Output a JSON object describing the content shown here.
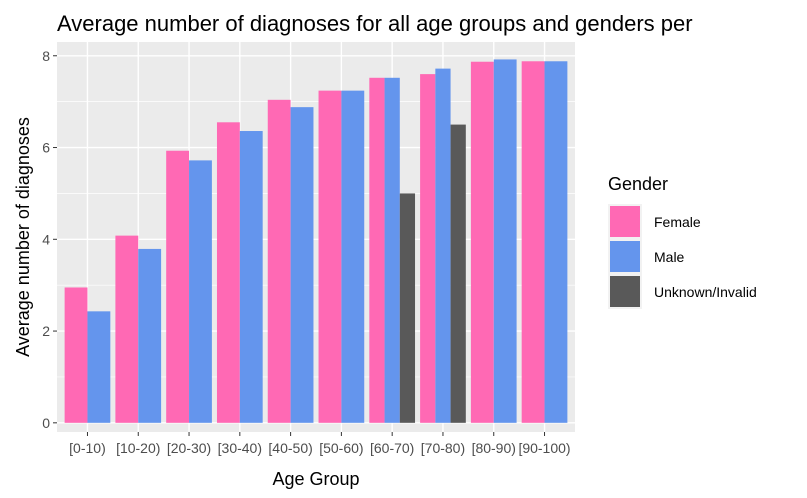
{
  "chart_data": {
    "type": "bar",
    "title": "Average number of diagnoses for all age groups and genders per",
    "xlabel": "Age Group",
    "ylabel": "Average number of diagnoses",
    "categories": [
      "[0-10)",
      "[10-20)",
      "[20-30)",
      "[30-40)",
      "[40-50)",
      "[50-60)",
      "[60-70)",
      "[70-80)",
      "[80-90)",
      "[90-100)"
    ],
    "ylim": [
      -0.2,
      8.3
    ],
    "yticks": [
      0,
      2,
      4,
      6,
      8
    ],
    "grid": true,
    "legend_position": "right",
    "legend_title": "Gender",
    "series": [
      {
        "name": "Female",
        "color": "#FF69B4",
        "values": [
          2.95,
          4.08,
          5.93,
          6.55,
          7.04,
          7.24,
          7.52,
          7.6,
          7.87,
          7.88
        ]
      },
      {
        "name": "Male",
        "color": "#6495ED",
        "values": [
          2.43,
          3.79,
          5.72,
          6.36,
          6.88,
          7.24,
          7.52,
          7.72,
          7.92,
          7.88
        ]
      },
      {
        "name": "Unknown/Invalid",
        "color": "#595959",
        "values": [
          null,
          null,
          null,
          null,
          null,
          null,
          5.0,
          6.5,
          null,
          null
        ]
      }
    ]
  }
}
